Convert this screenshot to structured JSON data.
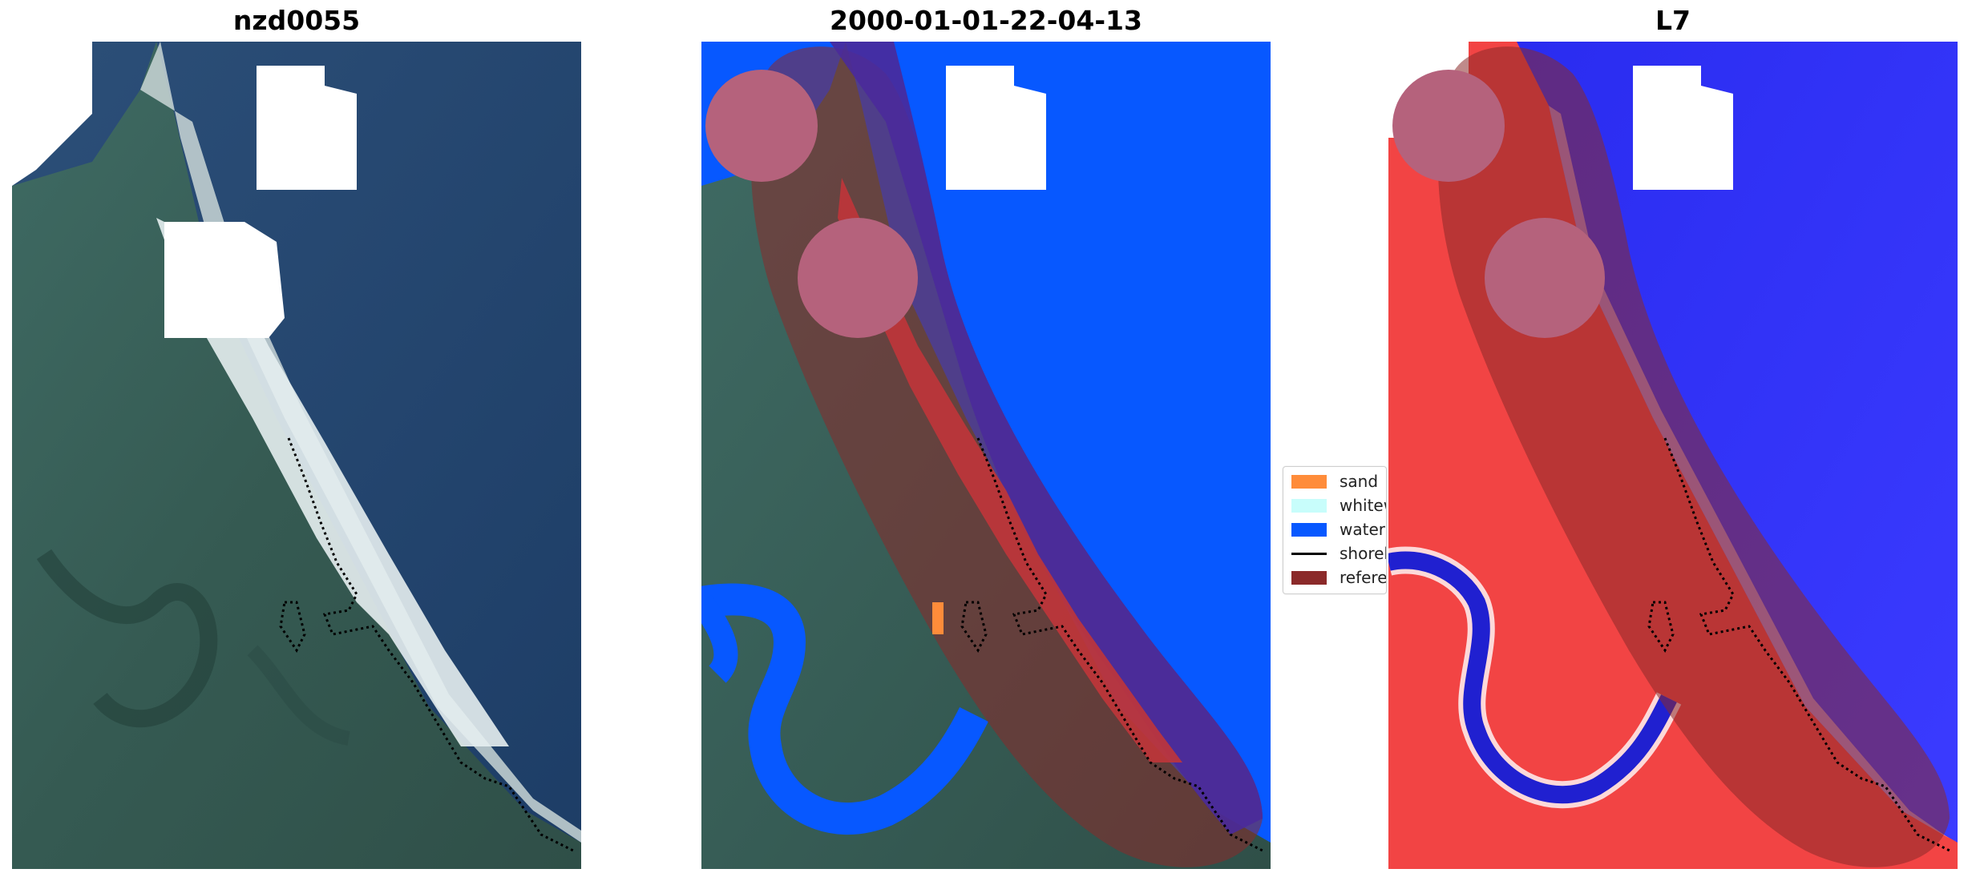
{
  "panels": [
    {
      "title": "nzd0055"
    },
    {
      "title": "2000-01-01-22-04-13"
    },
    {
      "title": "L7"
    }
  ],
  "legend": {
    "items": [
      {
        "label": "sand",
        "color": "#ff8c3a",
        "kind": "patch"
      },
      {
        "label": "whitew",
        "color": "#c8fdfb",
        "kind": "patch"
      },
      {
        "label": "water",
        "color": "#0758ff",
        "kind": "patch"
      },
      {
        "label": "shorel",
        "color": "#000000",
        "kind": "line"
      },
      {
        "label": "referen",
        "color": "#8b2a2a",
        "kind": "patch"
      }
    ]
  }
}
